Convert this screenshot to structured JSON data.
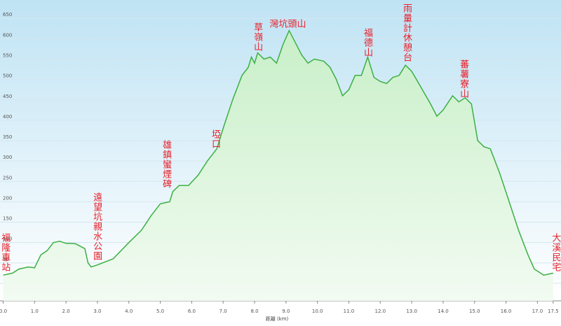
{
  "chart_data": {
    "type": "area",
    "x_label": "距離 (km)",
    "x": [
      0,
      0.3,
      0.5,
      0.8,
      1.0,
      1.2,
      1.4,
      1.6,
      1.8,
      2.0,
      2.3,
      2.6,
      2.7,
      2.8,
      3.0,
      3.5,
      4.0,
      4.4,
      4.7,
      5.0,
      5.3,
      5.4,
      5.6,
      5.9,
      6.2,
      6.5,
      6.8,
      7.0,
      7.3,
      7.6,
      7.8,
      7.9,
      8.0,
      8.1,
      8.3,
      8.5,
      8.7,
      8.9,
      9.1,
      9.3,
      9.5,
      9.7,
      9.9,
      10.2,
      10.4,
      10.6,
      10.8,
      11.0,
      11.2,
      11.4,
      11.6,
      11.8,
      12.0,
      12.2,
      12.4,
      12.6,
      12.8,
      13.0,
      13.3,
      13.6,
      13.8,
      14.0,
      14.3,
      14.5,
      14.7,
      14.9,
      15.1,
      15.3,
      15.5,
      15.8,
      16.1,
      16.4,
      16.7,
      16.9,
      17.2,
      17.5
    ],
    "values": [
      20,
      25,
      35,
      40,
      38,
      70,
      80,
      100,
      103,
      98,
      97,
      85,
      50,
      40,
      45,
      60,
      100,
      130,
      165,
      195,
      200,
      225,
      240,
      240,
      265,
      300,
      330,
      380,
      450,
      510,
      530,
      555,
      540,
      565,
      550,
      555,
      540,
      585,
      620,
      590,
      560,
      540,
      550,
      545,
      530,
      500,
      460,
      475,
      510,
      510,
      555,
      505,
      495,
      490,
      505,
      510,
      535,
      520,
      480,
      440,
      410,
      425,
      460,
      445,
      455,
      440,
      350,
      335,
      330,
      270,
      200,
      130,
      70,
      35,
      20,
      25
    ],
    "color": "#3cb043",
    "xlim": [
      -0.1,
      17.75
    ],
    "ylim": [
      -43,
      695
    ],
    "xticks": [
      {
        "value": 0,
        "label": "0.0"
      },
      {
        "value": 1,
        "label": "1.0"
      },
      {
        "value": 2,
        "label": "2.0"
      },
      {
        "value": 3,
        "label": "3.0"
      },
      {
        "value": 4,
        "label": "4.0"
      },
      {
        "value": 5,
        "label": "5.0"
      },
      {
        "value": 6,
        "label": "6.0"
      },
      {
        "value": 7,
        "label": "7.0"
      },
      {
        "value": 8,
        "label": "8.0"
      },
      {
        "value": 9,
        "label": "9.0"
      },
      {
        "value": 10,
        "label": "10.0"
      },
      {
        "value": 11,
        "label": "11.0"
      },
      {
        "value": 12,
        "label": "12.0"
      },
      {
        "value": 13,
        "label": "13.0"
      },
      {
        "value": 14,
        "label": "14.0"
      },
      {
        "value": 15,
        "label": "15.0"
      },
      {
        "value": 16,
        "label": "16.0"
      },
      {
        "value": 17,
        "label": "17.0"
      },
      17.5
    ],
    "yticks": [
      0,
      50,
      100,
      150,
      200,
      250,
      300,
      350,
      400,
      450,
      500,
      550,
      600,
      650
    ],
    "grid": true,
    "annotations": [
      {
        "text": "福隆車站",
        "x": 0.05,
        "y": 123,
        "orientation": "vertical"
      },
      {
        "text": "遠望坑親水公園",
        "x": 2.97,
        "y": 223,
        "orientation": "vertical"
      },
      {
        "text": "雄鎮蠻煙碑",
        "x": 5.18,
        "y": 352,
        "orientation": "vertical"
      },
      {
        "text": "埡口",
        "x": 6.74,
        "y": 377,
        "orientation": "vertical"
      },
      {
        "text": "草嶺山",
        "x": 8.08,
        "y": 640,
        "orientation": "vertical"
      },
      {
        "text": "灣坑頭山",
        "x": 9.06,
        "y": 635,
        "orientation": "horizontal"
      },
      {
        "text": "福德山",
        "x": 11.58,
        "y": 626,
        "orientation": "vertical"
      },
      {
        "text": "雨量計休憩台",
        "x": 12.83,
        "y": 686,
        "orientation": "vertical"
      },
      {
        "text": "蕃薯寮山",
        "x": 14.64,
        "y": 549,
        "orientation": "vertical"
      },
      {
        "text": "大溪民宅",
        "x": 17.57,
        "y": 123,
        "orientation": "vertical"
      }
    ]
  }
}
